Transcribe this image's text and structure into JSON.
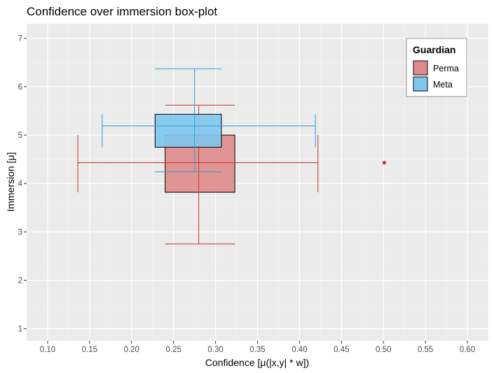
{
  "chart_data": {
    "type": "box",
    "title": "Confidence over immersion box-plot",
    "xlabel": "Confidence [μ(|x,y| * w])",
    "ylabel": "Immersion [μ]",
    "xlim": [
      0.075,
      0.625
    ],
    "ylim": [
      0.75,
      7.3
    ],
    "x_ticks": [
      "0.10",
      "0.15",
      "0.20",
      "0.25",
      "0.30",
      "0.35",
      "0.40",
      "0.45",
      "0.50",
      "0.55",
      "0.60"
    ],
    "y_ticks": [
      "1",
      "2",
      "3",
      "4",
      "5",
      "6",
      "7"
    ],
    "grid": true,
    "legend": {
      "title": "Guardian",
      "position": "top-right",
      "entries": [
        {
          "label": "Perma",
          "color": "#e08b8b"
        },
        {
          "label": "Meta",
          "color": "#7ec8ef"
        }
      ]
    },
    "series": [
      {
        "name": "Perma",
        "fill": "#e08b8b",
        "line_color": "#cc3333",
        "x": {
          "min": 0.136,
          "q1": 0.24,
          "median": 0.28,
          "q3": 0.323,
          "max": 0.422
        },
        "y": {
          "min": 2.75,
          "q1": 3.82,
          "median": 4.43,
          "q3": 5.0,
          "max": 5.62
        },
        "outliers": [
          {
            "x": 0.501,
            "y": 4.43
          }
        ]
      },
      {
        "name": "Meta",
        "fill": "#7ec8ef",
        "line_color": "#2e9fd1",
        "x": {
          "min": 0.165,
          "q1": 0.228,
          "median": 0.275,
          "q3": 0.307,
          "max": 0.419
        },
        "y": {
          "min": 4.24,
          "q1": 4.75,
          "median": 5.19,
          "q3": 5.43,
          "max": 6.37
        },
        "outliers": []
      }
    ]
  }
}
